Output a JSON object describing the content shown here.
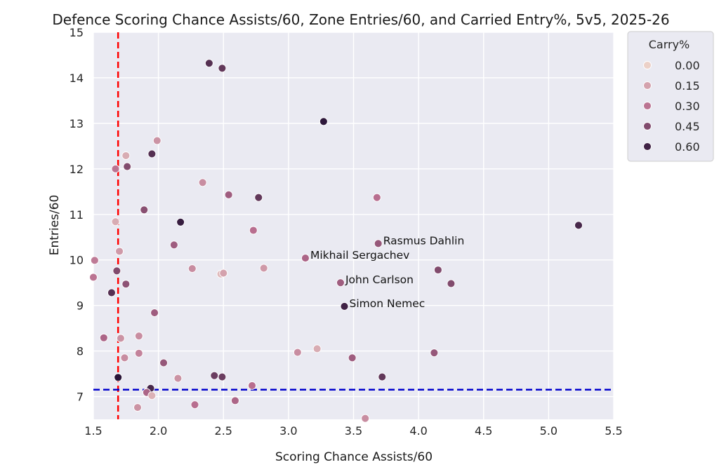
{
  "chart_data": {
    "type": "scatter",
    "title": "Defence Scoring Chance Assists/60, Zone Entries/60, and Carried Entry%, 5v5, 2025-26",
    "xlabel": "Scoring Chance Assists/60",
    "ylabel": "Entries/60",
    "xlim": [
      1.5,
      5.5
    ],
    "ylim": [
      6.5,
      15
    ],
    "xticks": [
      "1.5",
      "2.0",
      "2.5",
      "3.0",
      "3.5",
      "4.0",
      "4.5",
      "5.0",
      "5.5"
    ],
    "yticks": [
      "7",
      "8",
      "9",
      "10",
      "11",
      "12",
      "13",
      "14",
      "15"
    ],
    "grid": true,
    "reference_lines": {
      "vertical_x": 1.69,
      "vertical_color": "#ff0000",
      "horizontal_y": 7.15,
      "horizontal_color": "#0000cc"
    },
    "legend": {
      "title": "Carry%",
      "placement": "outside-top-right",
      "entries": [
        {
          "label": "0.00",
          "value": 0.0
        },
        {
          "label": "0.15",
          "value": 0.15
        },
        {
          "label": "0.30",
          "value": 0.3
        },
        {
          "label": "0.45",
          "value": 0.45
        },
        {
          "label": "0.60",
          "value": 0.6
        }
      ]
    },
    "colors": {
      "carry_low": "#ecd1c8",
      "carry_high": "#2a1538",
      "plot_background": "#eaeaf2",
      "grid": "#ffffff"
    },
    "points": [
      {
        "x": 2.39,
        "y": 14.32,
        "carry": 0.55
      },
      {
        "x": 2.49,
        "y": 14.21,
        "carry": 0.52
      },
      {
        "x": 3.27,
        "y": 13.04,
        "carry": 0.64
      },
      {
        "x": 1.99,
        "y": 12.62,
        "carry": 0.2
      },
      {
        "x": 1.95,
        "y": 12.33,
        "carry": 0.55
      },
      {
        "x": 1.75,
        "y": 12.29,
        "carry": 0.12
      },
      {
        "x": 1.67,
        "y": 12.0,
        "carry": 0.3
      },
      {
        "x": 1.76,
        "y": 12.05,
        "carry": 0.45
      },
      {
        "x": 2.34,
        "y": 11.7,
        "carry": 0.22
      },
      {
        "x": 2.54,
        "y": 11.43,
        "carry": 0.38
      },
      {
        "x": 2.77,
        "y": 11.37,
        "carry": 0.52
      },
      {
        "x": 3.68,
        "y": 11.37,
        "carry": 0.32
      },
      {
        "x": 1.89,
        "y": 11.1,
        "carry": 0.43
      },
      {
        "x": 1.67,
        "y": 10.84,
        "carry": 0.12
      },
      {
        "x": 2.17,
        "y": 10.83,
        "carry": 0.62
      },
      {
        "x": 5.23,
        "y": 10.76,
        "carry": 0.58
      },
      {
        "x": 2.73,
        "y": 10.65,
        "carry": 0.32
      },
      {
        "x": 2.12,
        "y": 10.33,
        "carry": 0.38
      },
      {
        "x": 3.69,
        "y": 10.36,
        "carry": 0.4,
        "label": "Rasmus Dahlin"
      },
      {
        "x": 1.7,
        "y": 10.19,
        "carry": 0.18
      },
      {
        "x": 3.13,
        "y": 10.04,
        "carry": 0.35,
        "label": "Mikhail Sergachev"
      },
      {
        "x": 1.51,
        "y": 9.99,
        "carry": 0.28
      },
      {
        "x": 2.26,
        "y": 9.81,
        "carry": 0.22
      },
      {
        "x": 2.81,
        "y": 9.82,
        "carry": 0.18
      },
      {
        "x": 2.48,
        "y": 9.69,
        "carry": 0.08
      },
      {
        "x": 2.5,
        "y": 9.71,
        "carry": 0.15
      },
      {
        "x": 1.68,
        "y": 9.76,
        "carry": 0.45
      },
      {
        "x": 4.15,
        "y": 9.78,
        "carry": 0.45
      },
      {
        "x": 1.5,
        "y": 9.62,
        "carry": 0.3
      },
      {
        "x": 3.4,
        "y": 9.5,
        "carry": 0.38,
        "label": "John Carlson"
      },
      {
        "x": 4.25,
        "y": 9.48,
        "carry": 0.45
      },
      {
        "x": 1.75,
        "y": 9.47,
        "carry": 0.42
      },
      {
        "x": 1.64,
        "y": 9.28,
        "carry": 0.55
      },
      {
        "x": 3.43,
        "y": 8.98,
        "carry": 0.6,
        "label": "Simon Nemec"
      },
      {
        "x": 1.97,
        "y": 8.84,
        "carry": 0.38
      },
      {
        "x": 1.85,
        "y": 8.33,
        "carry": 0.22
      },
      {
        "x": 1.58,
        "y": 8.29,
        "carry": 0.35
      },
      {
        "x": 1.71,
        "y": 8.28,
        "carry": 0.2
      },
      {
        "x": 3.22,
        "y": 8.05,
        "carry": 0.12
      },
      {
        "x": 3.07,
        "y": 7.97,
        "carry": 0.22
      },
      {
        "x": 4.12,
        "y": 7.96,
        "carry": 0.4
      },
      {
        "x": 1.85,
        "y": 7.95,
        "carry": 0.25
      },
      {
        "x": 1.74,
        "y": 7.85,
        "carry": 0.22
      },
      {
        "x": 3.49,
        "y": 7.85,
        "carry": 0.38
      },
      {
        "x": 2.04,
        "y": 7.74,
        "carry": 0.4
      },
      {
        "x": 2.43,
        "y": 7.46,
        "carry": 0.5
      },
      {
        "x": 2.49,
        "y": 7.43,
        "carry": 0.5
      },
      {
        "x": 3.72,
        "y": 7.43,
        "carry": 0.52
      },
      {
        "x": 1.69,
        "y": 7.42,
        "carry": 0.65
      },
      {
        "x": 2.15,
        "y": 7.4,
        "carry": 0.2
      },
      {
        "x": 2.72,
        "y": 7.24,
        "carry": 0.32
      },
      {
        "x": 1.94,
        "y": 7.18,
        "carry": 0.58
      },
      {
        "x": 1.91,
        "y": 7.09,
        "carry": 0.35
      },
      {
        "x": 1.95,
        "y": 7.02,
        "carry": 0.1
      },
      {
        "x": 2.59,
        "y": 6.91,
        "carry": 0.35
      },
      {
        "x": 2.28,
        "y": 6.82,
        "carry": 0.32
      },
      {
        "x": 1.84,
        "y": 6.76,
        "carry": 0.2
      },
      {
        "x": 3.59,
        "y": 6.52,
        "carry": 0.22
      }
    ]
  }
}
